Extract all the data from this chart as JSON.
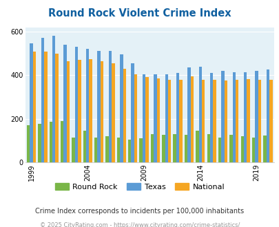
{
  "title": "Round Rock Violent Crime Index",
  "years": [
    1999,
    2000,
    2001,
    2002,
    2003,
    2004,
    2005,
    2006,
    2007,
    2008,
    2009,
    2010,
    2011,
    2012,
    2013,
    2014,
    2015,
    2016,
    2017,
    2018,
    2019,
    2020
  ],
  "round_rock": [
    170,
    178,
    185,
    190,
    115,
    145,
    115,
    120,
    115,
    105,
    110,
    130,
    125,
    130,
    125,
    145,
    130,
    115,
    125,
    120,
    115,
    122
  ],
  "texas": [
    545,
    570,
    580,
    540,
    530,
    520,
    510,
    510,
    495,
    455,
    405,
    405,
    405,
    410,
    435,
    440,
    410,
    420,
    415,
    415,
    420,
    425
  ],
  "national": [
    507,
    507,
    500,
    465,
    470,
    475,
    465,
    455,
    430,
    405,
    390,
    385,
    380,
    380,
    395,
    380,
    380,
    375,
    380,
    382,
    379,
    379
  ],
  "xtick_years": [
    1999,
    2004,
    2009,
    2014,
    2019
  ],
  "ylim": [
    0,
    620
  ],
  "yticks": [
    0,
    200,
    400,
    600
  ],
  "color_rr": "#7ab648",
  "color_tx": "#5b9bd5",
  "color_nat": "#f5a623",
  "bg_color": "#e4f1f7",
  "title_color": "#1060a0",
  "subtitle": "Crime Index corresponds to incidents per 100,000 inhabitants",
  "footer": "© 2025 CityRating.com - https://www.cityrating.com/crime-statistics/",
  "subtitle_color": "#333333",
  "footer_color": "#999999"
}
